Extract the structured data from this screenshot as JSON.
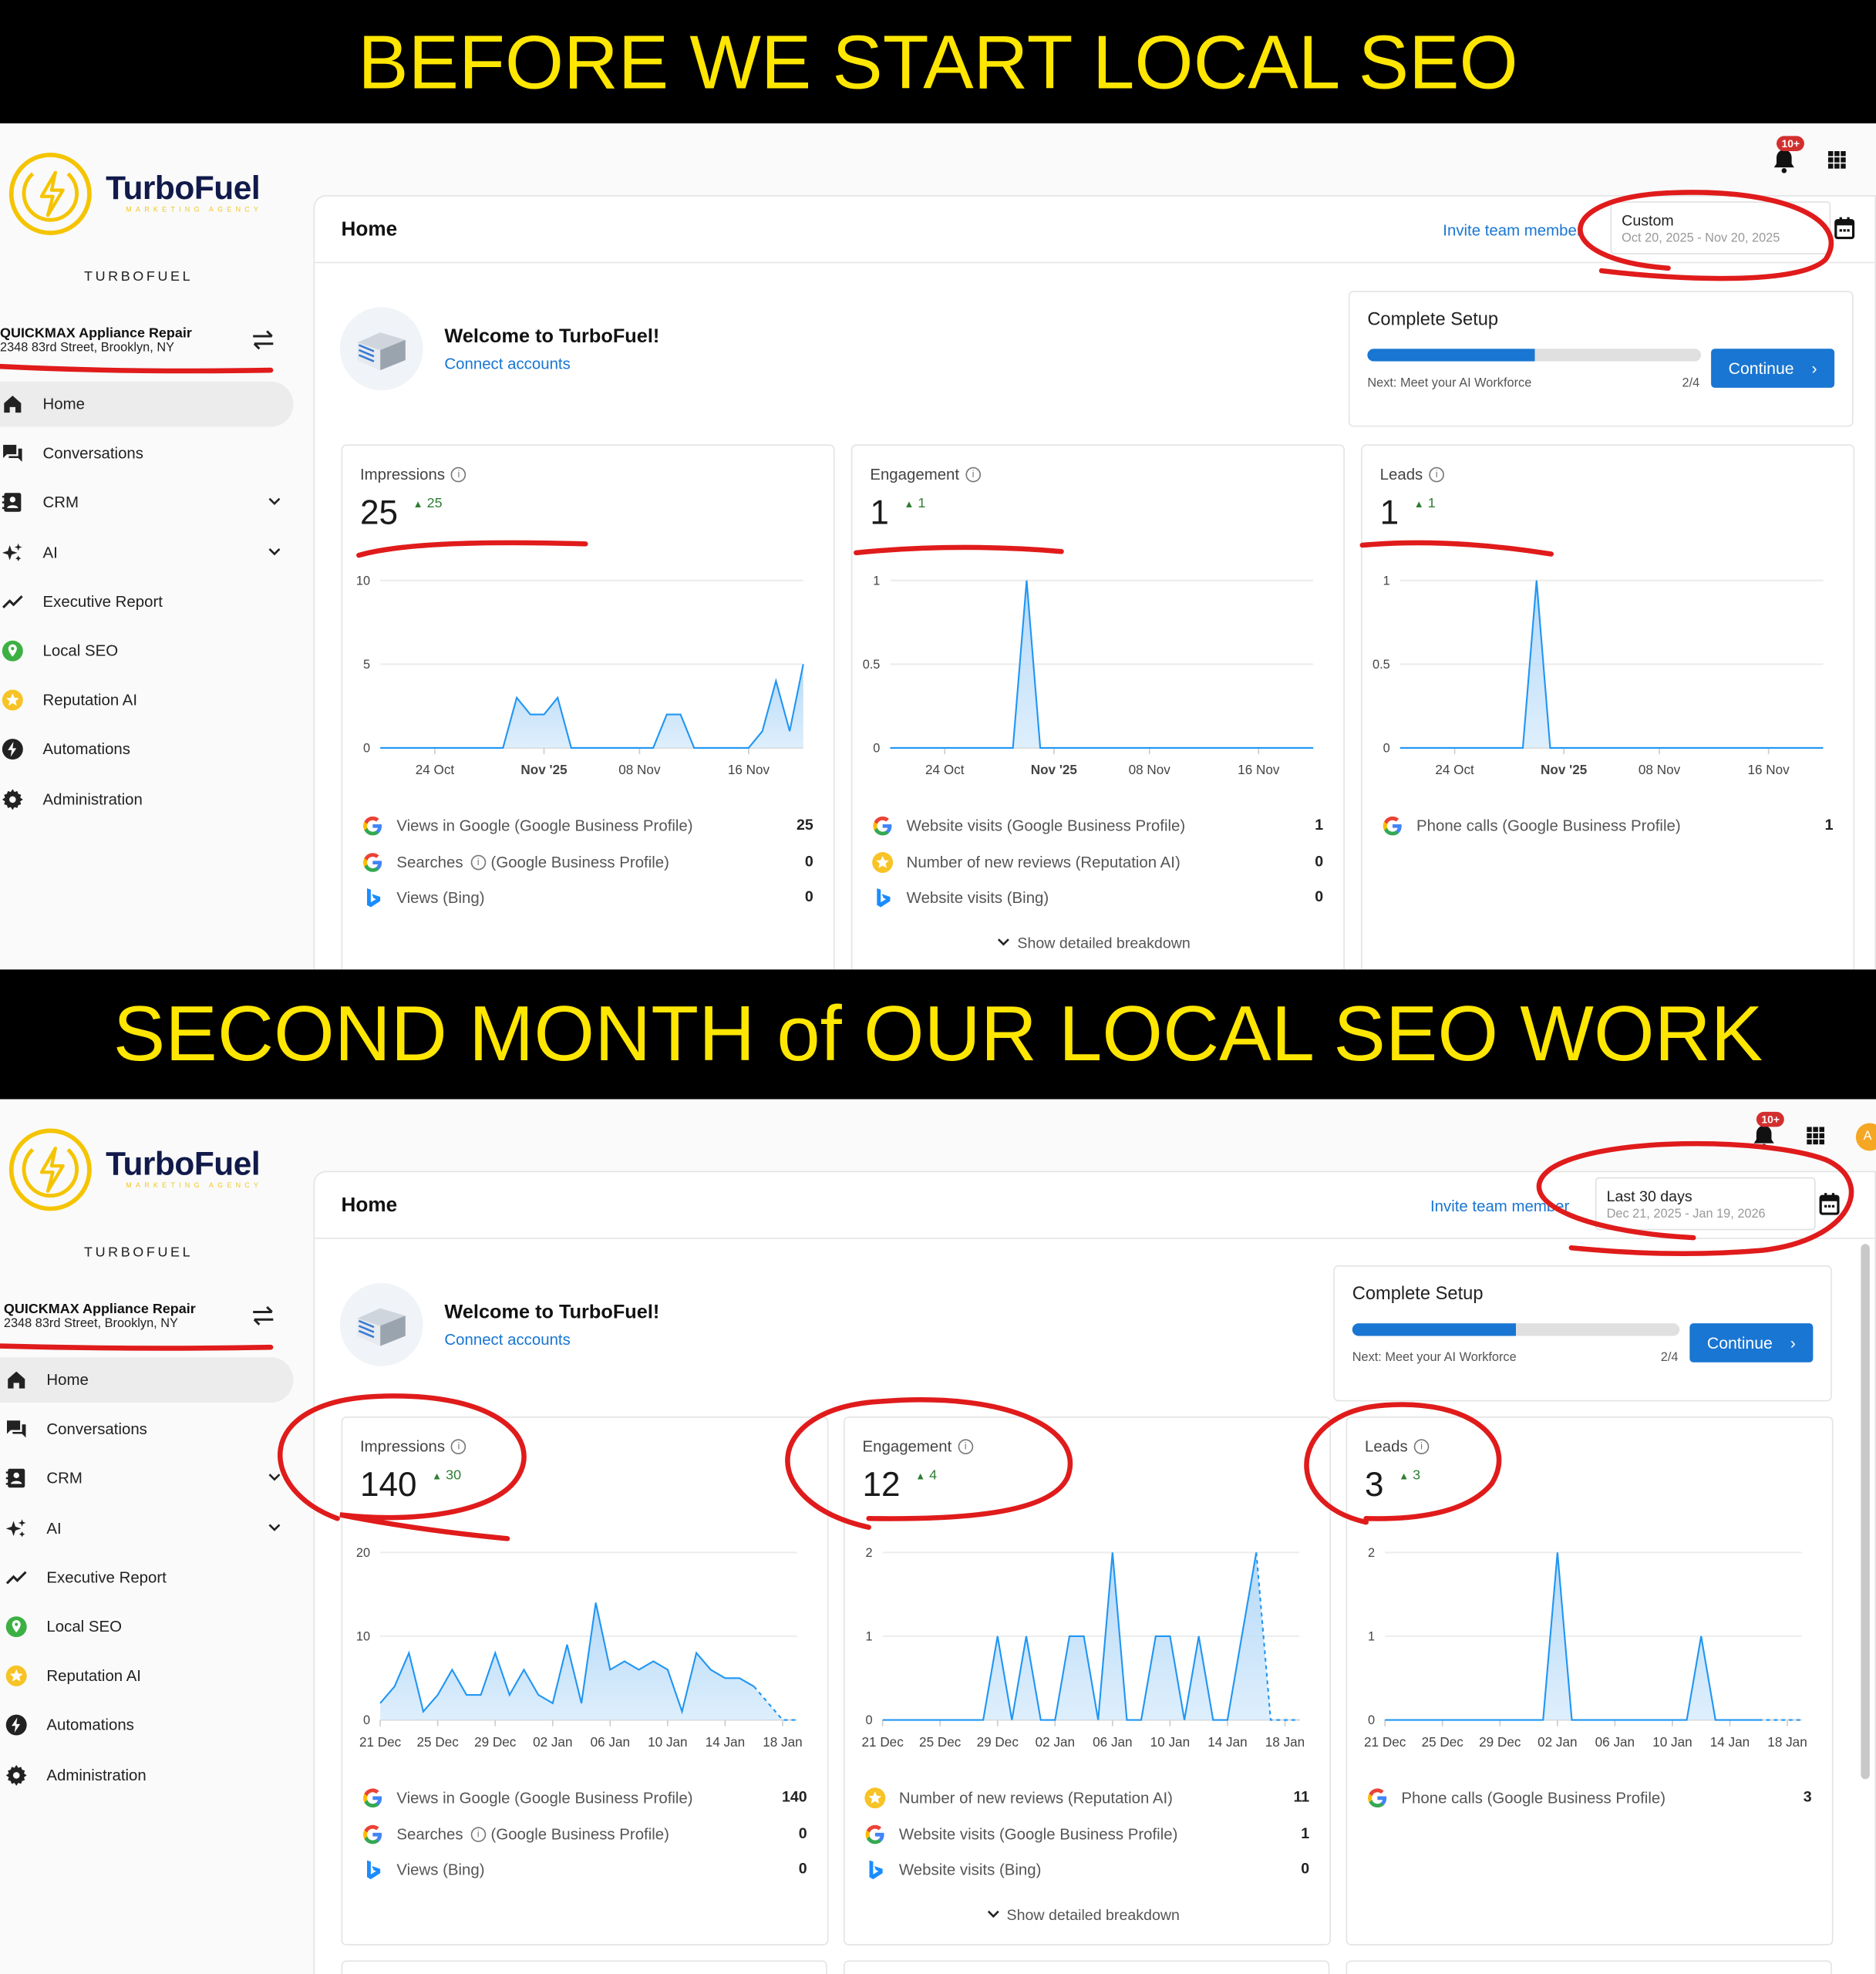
{
  "banners": [
    "BEFORE WE START LOCAL SEO",
    "SECOND MONTH of OUR LOCAL SEO WORK"
  ],
  "colors": {
    "banner_bg": "#000000",
    "banner_text": "#ffe600",
    "accent": "#1976d2",
    "delta_up": "#2e7d32",
    "annotation": "#e01b1b",
    "chart_line": "#2196f3",
    "brand_yellow": "#f3c623",
    "brand_navy": "#111a4a"
  },
  "panels": [
    {
      "brand": {
        "name": "TurboFuel",
        "tagline": "MARKETING AGENCY",
        "label": "TURBOFUEL"
      },
      "account": {
        "name": "QUICKMAX Appliance Repair",
        "address": "2348 83rd Street, Brooklyn, NY"
      },
      "nav": [
        {
          "label": "Home",
          "icon": "home-icon",
          "active": true
        },
        {
          "label": "Conversations",
          "icon": "conversations-icon"
        },
        {
          "label": "CRM",
          "icon": "contacts-icon",
          "expandable": true
        },
        {
          "label": "AI",
          "icon": "sparkles-icon",
          "expandable": true
        },
        {
          "label": "Executive Report",
          "icon": "trend-icon"
        },
        {
          "label": "Local SEO",
          "icon": "location-pin-icon"
        },
        {
          "label": "Reputation AI",
          "icon": "star-icon"
        },
        {
          "label": "Automations",
          "icon": "bolt-icon"
        },
        {
          "label": "Administration",
          "icon": "gear-icon"
        }
      ],
      "notifications_badge": "10+",
      "page_title": "Home",
      "invite_link": "Invite team member",
      "date_range": {
        "label": "Custom",
        "range": "Oct 20, 2025 - Nov 20, 2025"
      },
      "welcome": {
        "title": "Welcome to TurboFuel!",
        "link": "Connect accounts"
      },
      "setup": {
        "title": "Complete Setup",
        "progress": 0.5,
        "next": "Next: Meet your AI Workforce",
        "step": "2/4",
        "button": "Continue"
      },
      "metrics": [
        {
          "title": "Impressions",
          "value": "25",
          "delta": "25",
          "rows": [
            {
              "icon": "google-icon",
              "label": "Views in Google (Google Business Profile)",
              "value": "25"
            },
            {
              "icon": "google-icon",
              "label": "Searches",
              "suffix": "(Google Business Profile)",
              "value": "0"
            },
            {
              "icon": "bing-icon",
              "label": "Views (Bing)",
              "value": "0"
            }
          ]
        },
        {
          "title": "Engagement",
          "value": "1",
          "delta": "1",
          "rows": [
            {
              "icon": "google-icon",
              "label": "Website visits (Google Business Profile)",
              "value": "1"
            },
            {
              "icon": "reputation-star-icon",
              "label": "Number of new reviews (Reputation AI)",
              "value": "0"
            },
            {
              "icon": "bing-icon",
              "label": "Website visits (Bing)",
              "value": "0"
            }
          ],
          "breakdown": "Show detailed breakdown"
        },
        {
          "title": "Leads",
          "value": "1",
          "delta": "1",
          "rows": [
            {
              "icon": "google-icon",
              "label": "Phone calls (Google Business Profile)",
              "value": "1"
            }
          ]
        }
      ]
    },
    {
      "brand": {
        "name": "TurboFuel",
        "tagline": "MARKETING AGENCY",
        "label": "TURBOFUEL"
      },
      "account": {
        "name": "QUICKMAX Appliance Repair",
        "address": "2348 83rd Street, Brooklyn, NY"
      },
      "nav": [
        {
          "label": "Home",
          "icon": "home-icon",
          "active": true
        },
        {
          "label": "Conversations",
          "icon": "conversations-icon"
        },
        {
          "label": "CRM",
          "icon": "contacts-icon",
          "expandable": true
        },
        {
          "label": "AI",
          "icon": "sparkles-icon",
          "expandable": true
        },
        {
          "label": "Executive Report",
          "icon": "trend-icon"
        },
        {
          "label": "Local SEO",
          "icon": "location-pin-icon"
        },
        {
          "label": "Reputation AI",
          "icon": "star-icon"
        },
        {
          "label": "Automations",
          "icon": "bolt-icon"
        },
        {
          "label": "Administration",
          "icon": "gear-icon"
        }
      ],
      "notifications_badge": "10+",
      "avatar_initial": "A",
      "page_title": "Home",
      "invite_link": "Invite team member",
      "date_range": {
        "label": "Last 30 days",
        "range": "Dec 21, 2025 - Jan 19, 2026"
      },
      "welcome": {
        "title": "Welcome to TurboFuel!",
        "link": "Connect accounts"
      },
      "setup": {
        "title": "Complete Setup",
        "progress": 0.5,
        "next": "Next: Meet your AI Workforce",
        "step": "2/4",
        "button": "Continue"
      },
      "metrics": [
        {
          "title": "Impressions",
          "value": "140",
          "delta": "30",
          "rows": [
            {
              "icon": "google-icon",
              "label": "Views in Google (Google Business Profile)",
              "value": "140"
            },
            {
              "icon": "google-icon",
              "label": "Searches",
              "suffix": "(Google Business Profile)",
              "value": "0"
            },
            {
              "icon": "bing-icon",
              "label": "Views (Bing)",
              "value": "0"
            }
          ]
        },
        {
          "title": "Engagement",
          "value": "12",
          "delta": "4",
          "rows": [
            {
              "icon": "reputation-star-icon",
              "label": "Number of new reviews (Reputation AI)",
              "value": "11"
            },
            {
              "icon": "google-icon",
              "label": "Website visits (Google Business Profile)",
              "value": "1"
            },
            {
              "icon": "bing-icon",
              "label": "Website visits (Bing)",
              "value": "0"
            }
          ],
          "breakdown": "Show detailed breakdown"
        },
        {
          "title": "Leads",
          "value": "3",
          "delta": "3",
          "rows": [
            {
              "icon": "google-icon",
              "label": "Phone calls (Google Business Profile)",
              "value": "3"
            }
          ]
        }
      ]
    }
  ],
  "chart_data": [
    {
      "type": "area",
      "x_range": [
        "2025-10-20",
        "2025-11-20"
      ],
      "interval": "daily",
      "ylim": [
        0,
        10
      ],
      "yticks": [
        0,
        5,
        10
      ],
      "grid": true,
      "xticks": [
        {
          "label": "24 Oct",
          "date": "2025-10-24"
        },
        {
          "label": "Nov '25",
          "date": "2025-11-01",
          "bold": true
        },
        {
          "label": "08 Nov",
          "date": "2025-11-08"
        },
        {
          "label": "16 Nov",
          "date": "2025-11-16"
        }
      ],
      "values": [
        0,
        0,
        0,
        0,
        0,
        0,
        0,
        0,
        0,
        0,
        3,
        2,
        2,
        3,
        0,
        0,
        0,
        0,
        0,
        0,
        0,
        2,
        2,
        0,
        0,
        0,
        0,
        0,
        1,
        4,
        1,
        5
      ]
    },
    {
      "type": "area",
      "x_range": [
        "2025-10-20",
        "2025-11-20"
      ],
      "interval": "daily",
      "ylim": [
        0,
        1
      ],
      "yticks": [
        0,
        0.5,
        1
      ],
      "grid": true,
      "xticks": [
        {
          "label": "24 Oct",
          "date": "2025-10-24"
        },
        {
          "label": "Nov '25",
          "date": "2025-11-01",
          "bold": true
        },
        {
          "label": "08 Nov",
          "date": "2025-11-08"
        },
        {
          "label": "16 Nov",
          "date": "2025-11-16"
        }
      ],
      "values": [
        0,
        0,
        0,
        0,
        0,
        0,
        0,
        0,
        0,
        0,
        1,
        0,
        0,
        0,
        0,
        0,
        0,
        0,
        0,
        0,
        0,
        0,
        0,
        0,
        0,
        0,
        0,
        0,
        0,
        0,
        0,
        0
      ]
    },
    {
      "type": "area",
      "x_range": [
        "2025-10-20",
        "2025-11-20"
      ],
      "interval": "daily",
      "ylim": [
        0,
        1
      ],
      "yticks": [
        0,
        0.5,
        1
      ],
      "grid": true,
      "xticks": [
        {
          "label": "24 Oct",
          "date": "2025-10-24"
        },
        {
          "label": "Nov '25",
          "date": "2025-11-01",
          "bold": true
        },
        {
          "label": "08 Nov",
          "date": "2025-11-08"
        },
        {
          "label": "16 Nov",
          "date": "2025-11-16"
        }
      ],
      "values": [
        0,
        0,
        0,
        0,
        0,
        0,
        0,
        0,
        0,
        0,
        1,
        0,
        0,
        0,
        0,
        0,
        0,
        0,
        0,
        0,
        0,
        0,
        0,
        0,
        0,
        0,
        0,
        0,
        0,
        0,
        0,
        0
      ]
    },
    {
      "type": "area",
      "x_range": [
        "2025-12-21",
        "2026-01-19"
      ],
      "interval": "daily",
      "ylim": [
        0,
        20
      ],
      "yticks": [
        0,
        10,
        20
      ],
      "grid": true,
      "partial_from": "2026-01-16",
      "xticks": [
        {
          "label": "21 Dec",
          "date": "2025-12-21"
        },
        {
          "label": "25 Dec",
          "date": "2025-12-25"
        },
        {
          "label": "29 Dec",
          "date": "2025-12-29"
        },
        {
          "label": "02 Jan",
          "date": "2026-01-02"
        },
        {
          "label": "06 Jan",
          "date": "2026-01-06"
        },
        {
          "label": "10 Jan",
          "date": "2026-01-10"
        },
        {
          "label": "14 Jan",
          "date": "2026-01-14"
        },
        {
          "label": "18 Jan",
          "date": "2026-01-18"
        }
      ],
      "values": [
        2,
        4,
        8,
        1,
        3,
        6,
        3,
        3,
        8,
        3,
        6,
        3,
        2,
        9,
        2,
        14,
        6,
        7,
        6,
        7,
        6,
        1,
        8,
        6,
        5,
        5,
        4,
        2,
        0,
        0
      ]
    },
    {
      "type": "area",
      "x_range": [
        "2025-12-21",
        "2026-01-19"
      ],
      "interval": "daily",
      "ylim": [
        0,
        2
      ],
      "yticks": [
        0,
        1,
        2
      ],
      "grid": true,
      "partial_from": "2026-01-16",
      "xticks": [
        {
          "label": "21 Dec",
          "date": "2025-12-21"
        },
        {
          "label": "25 Dec",
          "date": "2025-12-25"
        },
        {
          "label": "29 Dec",
          "date": "2025-12-29"
        },
        {
          "label": "02 Jan",
          "date": "2026-01-02"
        },
        {
          "label": "06 Jan",
          "date": "2026-01-06"
        },
        {
          "label": "10 Jan",
          "date": "2026-01-10"
        },
        {
          "label": "14 Jan",
          "date": "2026-01-14"
        },
        {
          "label": "18 Jan",
          "date": "2026-01-18"
        }
      ],
      "values": [
        0,
        0,
        0,
        0,
        0,
        0,
        0,
        0,
        1,
        0,
        1,
        0,
        0,
        1,
        1,
        0,
        2,
        0,
        0,
        1,
        1,
        0,
        1,
        0,
        0,
        1,
        2,
        0,
        0,
        0
      ]
    },
    {
      "type": "area",
      "x_range": [
        "2025-12-21",
        "2026-01-19"
      ],
      "interval": "daily",
      "ylim": [
        0,
        2
      ],
      "yticks": [
        0,
        1,
        2
      ],
      "grid": true,
      "partial_from": "2026-01-16",
      "xticks": [
        {
          "label": "21 Dec",
          "date": "2025-12-21"
        },
        {
          "label": "25 Dec",
          "date": "2025-12-25"
        },
        {
          "label": "29 Dec",
          "date": "2025-12-29"
        },
        {
          "label": "02 Jan",
          "date": "2026-01-02"
        },
        {
          "label": "06 Jan",
          "date": "2026-01-06"
        },
        {
          "label": "10 Jan",
          "date": "2026-01-10"
        },
        {
          "label": "14 Jan",
          "date": "2026-01-14"
        },
        {
          "label": "18 Jan",
          "date": "2026-01-18"
        }
      ],
      "values": [
        0,
        0,
        0,
        0,
        0,
        0,
        0,
        0,
        0,
        0,
        0,
        0,
        2,
        0,
        0,
        0,
        0,
        0,
        0,
        0,
        0,
        0,
        1,
        0,
        0,
        0,
        0,
        0,
        0,
        0
      ]
    }
  ]
}
